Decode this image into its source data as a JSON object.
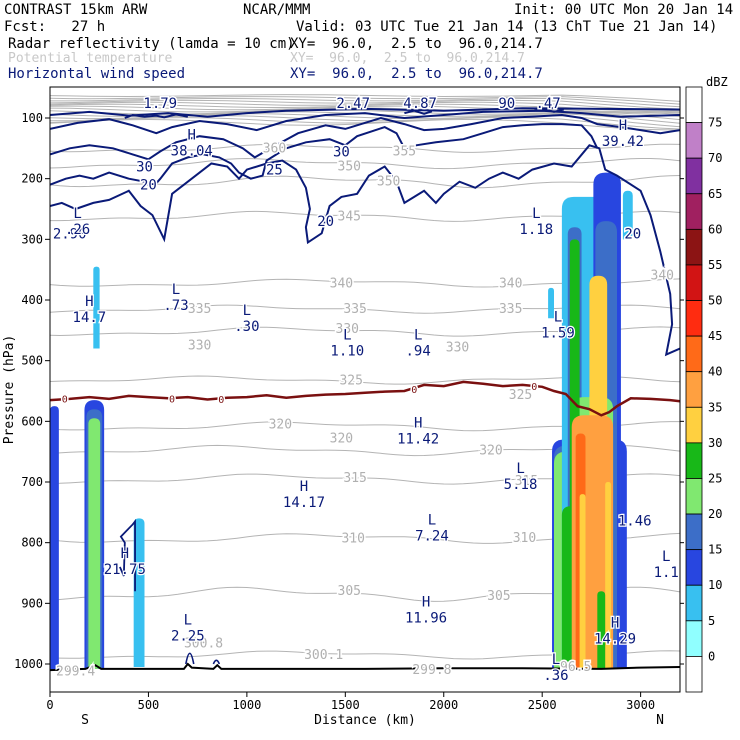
{
  "header": {
    "line1_left": "CONTRAST 15km ARW",
    "line1_mid": "NCAR/MMM",
    "line1_right": "Init: 00 UTC Mon 20 Jan 14",
    "line2_left": "Fcst:   27 h",
    "line2_right": "Valid: 03 UTC Tue 21 Jan 14 (13 ChT Tue 21 Jan 14)",
    "field1_name": "Radar reflectivity (lamda = 10 cm)",
    "field1_xy": "XY=  96.0,  2.5 to  96.0,214.7",
    "field2_name": "Potential temperature",
    "field2_xy": "XY=  96.0,  2.5 to  96.0,214.7",
    "field3_name": "Horizontal wind speed",
    "field3_xy": "XY=  96.0,  2.5 to  96.0,214.7"
  },
  "colors": {
    "navy": "#0a1a78",
    "theta": "#b4b4b4",
    "freezing_line": "#7a1010",
    "terrain": "#000000"
  },
  "chart_data": {
    "type": "heatmap",
    "xlabel": "Distance (km)",
    "ylabel": "Pressure (hPa)",
    "xlim": [
      0,
      3200
    ],
    "ylim": [
      1050,
      60
    ],
    "x_ticks": [
      0,
      500,
      1000,
      1500,
      2000,
      2500,
      3000
    ],
    "y_ticks": [
      100,
      200,
      300,
      400,
      500,
      600,
      700,
      800,
      900,
      1000
    ],
    "x_end_labels": {
      "left": "S",
      "right": "N"
    },
    "colorbar": {
      "unit": "dBZ",
      "levels": [
        75,
        70,
        65,
        60,
        55,
        50,
        45,
        40,
        35,
        30,
        25,
        20,
        15,
        10,
        5,
        0
      ],
      "colors": [
        "#ffffff",
        "#c080c8",
        "#8030a0",
        "#a02060",
        "#8c1414",
        "#d21414",
        "#ff2c10",
        "#ff6a18",
        "#ffa040",
        "#ffd040",
        "#18b818",
        "#80e870",
        "#3c6ec8",
        "#2846e0",
        "#38c0f0",
        "#90ffff",
        "#ffffff"
      ]
    },
    "wind_speed_labels": [
      {
        "x": 100,
        "p": 290,
        "text": "2.90"
      },
      {
        "x": 560,
        "p": 75,
        "text": "1.79"
      },
      {
        "x": 1540,
        "p": 75,
        "text": "2.47"
      },
      {
        "x": 1880,
        "p": 75,
        "text": "4.87"
      },
      {
        "x": 2320,
        "p": 75,
        "text": "90"
      },
      {
        "x": 2530,
        "p": 75,
        "text": ".47"
      },
      {
        "x": 480,
        "p": 180,
        "text": "30"
      },
      {
        "x": 1480,
        "p": 155,
        "text": "30"
      },
      {
        "x": 1140,
        "p": 185,
        "text": "25"
      },
      {
        "x": 500,
        "p": 210,
        "text": "20"
      },
      {
        "x": 1400,
        "p": 270,
        "text": "20"
      },
      {
        "x": 2960,
        "p": 290,
        "text": "20"
      }
    ],
    "highs_lows": [
      {
        "x": 720,
        "p": 140,
        "mark": "H",
        "value": "38.04"
      },
      {
        "x": 2910,
        "p": 125,
        "mark": "H",
        "value": "39.42"
      },
      {
        "x": 140,
        "p": 270,
        "mark": "L",
        "value": ".26"
      },
      {
        "x": 2470,
        "p": 270,
        "mark": "L",
        "value": "1.18"
      },
      {
        "x": 200,
        "p": 415,
        "mark": "H",
        "value": "14.7"
      },
      {
        "x": 640,
        "p": 395,
        "mark": "L",
        "value": ".73"
      },
      {
        "x": 1000,
        "p": 430,
        "mark": "L",
        "value": ".30"
      },
      {
        "x": 1510,
        "p": 470,
        "mark": "L",
        "value": "1.10"
      },
      {
        "x": 1870,
        "p": 470,
        "mark": "L",
        "value": ".94"
      },
      {
        "x": 2580,
        "p": 440,
        "mark": "L",
        "value": "1.59"
      },
      {
        "x": 1870,
        "p": 615,
        "mark": "H",
        "value": "11.42"
      },
      {
        "x": 2390,
        "p": 690,
        "mark": "L",
        "value": "5.18"
      },
      {
        "x": 1290,
        "p": 720,
        "mark": "H",
        "value": "14.17"
      },
      {
        "x": 2970,
        "p": 750,
        "mark": "",
        "value": "1.46"
      },
      {
        "x": 1940,
        "p": 775,
        "mark": "L",
        "value": "7.24"
      },
      {
        "x": 380,
        "p": 830,
        "mark": "H",
        "value": "21.75"
      },
      {
        "x": 3130,
        "p": 835,
        "mark": "L",
        "value": "1.1"
      },
      {
        "x": 1910,
        "p": 910,
        "mark": "H",
        "value": "11.96"
      },
      {
        "x": 700,
        "p": 940,
        "mark": "L",
        "value": "2.25"
      },
      {
        "x": 2870,
        "p": 945,
        "mark": "H",
        "value": "14.29"
      },
      {
        "x": 2570,
        "p": 1005,
        "mark": "L",
        "value": ".36"
      }
    ],
    "theta_labels": [
      {
        "x": 1140,
        "p": 150,
        "text": "360"
      },
      {
        "x": 1800,
        "p": 155,
        "text": "355"
      },
      {
        "x": 1520,
        "p": 180,
        "text": "350"
      },
      {
        "x": 1720,
        "p": 205,
        "text": "350"
      },
      {
        "x": 1520,
        "p": 262,
        "text": "345"
      },
      {
        "x": 1480,
        "p": 373,
        "text": "340"
      },
      {
        "x": 2340,
        "p": 373,
        "text": "340"
      },
      {
        "x": 3110,
        "p": 360,
        "text": "340"
      },
      {
        "x": 1550,
        "p": 415,
        "text": "335"
      },
      {
        "x": 2340,
        "p": 415,
        "text": "335"
      },
      {
        "x": 760,
        "p": 415,
        "text": "335"
      },
      {
        "x": 760,
        "p": 475,
        "text": "330"
      },
      {
        "x": 1510,
        "p": 448,
        "text": "330"
      },
      {
        "x": 2070,
        "p": 478,
        "text": "330"
      },
      {
        "x": 1530,
        "p": 533,
        "text": "325"
      },
      {
        "x": 2390,
        "p": 557,
        "text": "325"
      },
      {
        "x": 1170,
        "p": 605,
        "text": "320"
      },
      {
        "x": 1480,
        "p": 628,
        "text": "320"
      },
      {
        "x": 2240,
        "p": 648,
        "text": "320"
      },
      {
        "x": 1550,
        "p": 693,
        "text": "315"
      },
      {
        "x": 2420,
        "p": 698,
        "text": "315"
      },
      {
        "x": 1540,
        "p": 793,
        "text": "310"
      },
      {
        "x": 2410,
        "p": 792,
        "text": "310"
      },
      {
        "x": 1520,
        "p": 880,
        "text": "305"
      },
      {
        "x": 2280,
        "p": 888,
        "text": "305"
      },
      {
        "x": 780,
        "p": 966,
        "text": "300.8"
      },
      {
        "x": 1390,
        "p": 985,
        "text": "300.1"
      },
      {
        "x": 130,
        "p": 1012,
        "text": "299.4"
      },
      {
        "x": 1940,
        "p": 1010,
        "text": "299.8"
      },
      {
        "x": 2670,
        "p": 1005,
        "text": "96.5"
      }
    ],
    "freezing_labels": [
      "0",
      "0",
      "0",
      "0",
      "0"
    ]
  }
}
